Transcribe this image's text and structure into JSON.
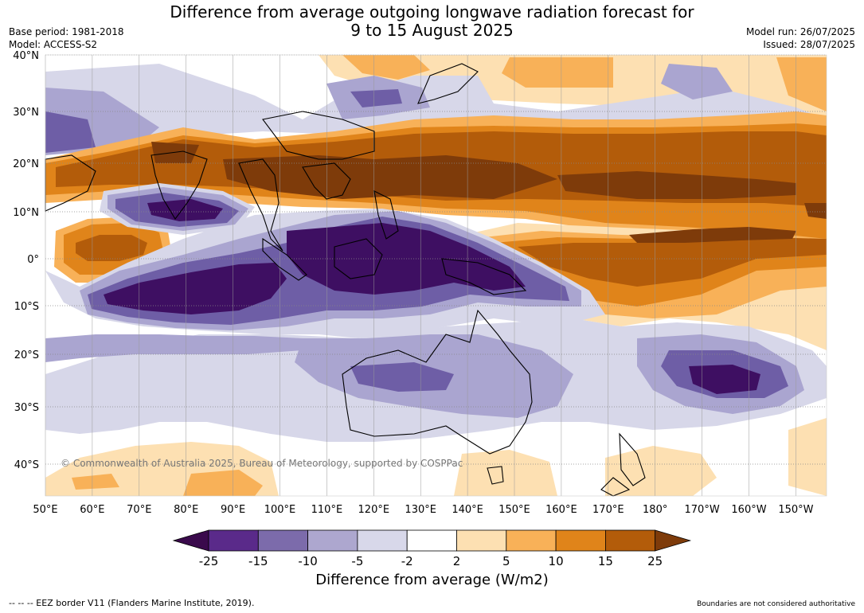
{
  "title_line1": "Difference from average outgoing longwave radiation forecast for",
  "title_line2": "9 to 15 August 2025",
  "meta_left": {
    "base_period": "Base period: 1981-2018",
    "model": "Model: ACCESS-S2"
  },
  "meta_right": {
    "model_run": "Model run: 26/07/2025",
    "issued": "Issued: 28/07/2025"
  },
  "map": {
    "lat_labels": [
      "40°N",
      "30°N",
      "20°N",
      "10°N",
      "0°",
      "10°S",
      "20°S",
      "30°S",
      "40°S"
    ],
    "lon_labels": [
      "50°E",
      "60°E",
      "70°E",
      "80°E",
      "90°E",
      "100°E",
      "110°E",
      "120°E",
      "130°E",
      "140°E",
      "150°E",
      "160°E",
      "170°E",
      "180°",
      "170°W",
      "160°W",
      "150°W"
    ],
    "copyright": "© Commonwealth of Australia 2025, Bureau of Meteorology, supported by COSPPac"
  },
  "colorbar": {
    "title": "Difference from average (W/m2)",
    "ticks": [
      "-25",
      "-15",
      "-10",
      "-5",
      "-2",
      "2",
      "5",
      "10",
      "15",
      "25"
    ],
    "colors": [
      "#3a0a4c",
      "#5a2a8a",
      "#7c6bab",
      "#ada7cf",
      "#d8d8ea",
      "#ffffff",
      "#fde0b2",
      "#f8b158",
      "#e0841a",
      "#b35c0a",
      "#7e3b0a"
    ]
  },
  "footer": {
    "eez": "--  --  -- EEZ border V11 (Flanders Marine Institute, 2019).",
    "disclaimer": "Boundaries are not considered authoritative"
  },
  "palette": {
    "purple_strong": "#3e0f62",
    "purple_mid": "#6e5ea6",
    "purple_light": "#aaa5d0",
    "purple_faint": "#d7d7e9",
    "orange_faint": "#fde0b2",
    "orange_light": "#f8b158",
    "orange_mid": "#e0841a",
    "orange_strong": "#b35c0a",
    "brown_dark": "#7e3b0a"
  }
}
